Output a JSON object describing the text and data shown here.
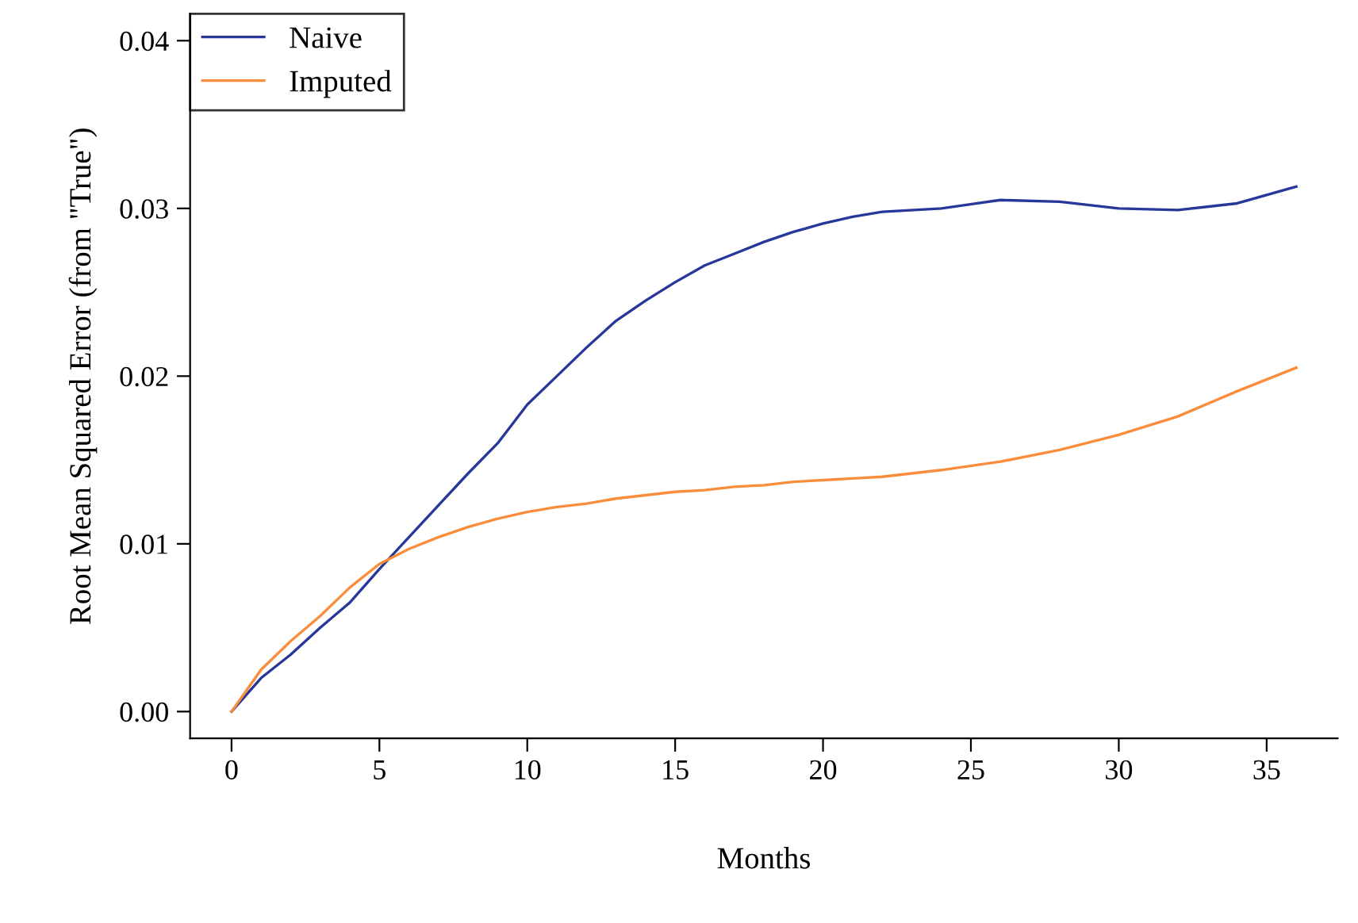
{
  "chart_data": {
    "type": "line",
    "xlabel": "Months",
    "ylabel": "Root Mean Squared Error (from \"True\")",
    "xlim": [
      -1.4,
      37.4
    ],
    "ylim": [
      -0.0016,
      0.0416
    ],
    "xticks": [
      0,
      5,
      10,
      15,
      20,
      25,
      30,
      35
    ],
    "yticks": [
      {
        "value": 0,
        "label": "0.00"
      },
      {
        "value": 0.01,
        "label": "0.01"
      },
      {
        "value": 0.02,
        "label": "0.02"
      },
      {
        "value": 0.03,
        "label": "0.03"
      },
      {
        "value": 0.04,
        "label": "0.04"
      }
    ],
    "legend": "top left",
    "grid": false,
    "x": [
      0,
      1,
      2,
      3,
      4,
      5,
      6,
      7,
      8,
      9,
      10,
      11,
      12,
      13,
      14,
      15,
      16,
      17,
      18,
      19,
      20,
      21,
      22,
      24,
      26,
      28,
      30,
      32,
      34,
      36
    ],
    "series": [
      {
        "name": "Naive",
        "color": "#27389a",
        "values": [
          0,
          0.002,
          0.0034,
          0.005,
          0.0065,
          0.0085,
          0.0104,
          0.0123,
          0.0142,
          0.016,
          0.0183,
          0.02,
          0.0217,
          0.0233,
          0.0245,
          0.0256,
          0.0266,
          0.0273,
          0.028,
          0.0286,
          0.0291,
          0.0295,
          0.0298,
          0.03,
          0.0305,
          0.0304,
          0.03,
          0.0299,
          0.0303,
          0.0313
        ]
      },
      {
        "name": "Imputed",
        "color": "#f98d3c",
        "values": [
          0,
          0.0025,
          0.0042,
          0.0057,
          0.0074,
          0.0088,
          0.0097,
          0.0104,
          0.011,
          0.0115,
          0.0119,
          0.0122,
          0.0124,
          0.0127,
          0.0129,
          0.0131,
          0.0132,
          0.0134,
          0.0135,
          0.0137,
          0.0138,
          0.0139,
          0.014,
          0.0144,
          0.0149,
          0.0156,
          0.0165,
          0.0176,
          0.0191,
          0.0205
        ]
      }
    ]
  }
}
